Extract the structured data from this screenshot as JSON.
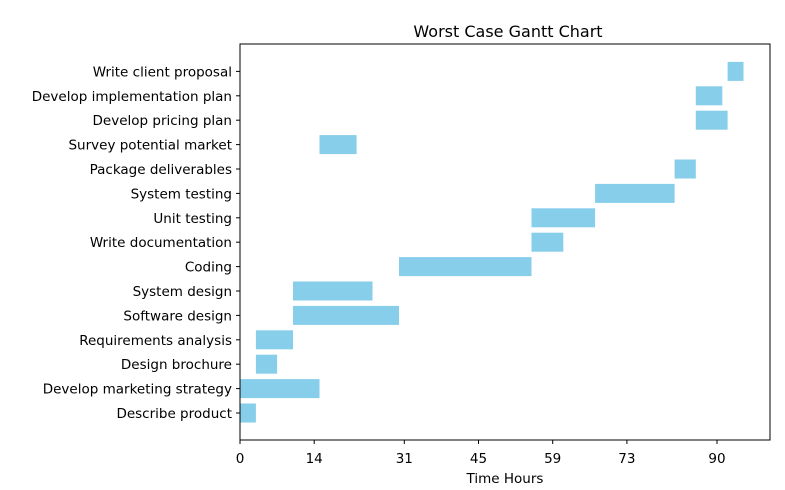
{
  "chart_data": {
    "type": "gantt",
    "title": "Worst Case Gantt Chart",
    "xlabel": "Time Hours",
    "ylabel": "",
    "xlim": [
      0,
      100
    ],
    "xticks": [
      0,
      14,
      31,
      45,
      59,
      73,
      90
    ],
    "grid": false,
    "legend": "none",
    "bar_color": "#87CEEB",
    "tasks": [
      {
        "name": "Describe product",
        "start": 0,
        "end": 3
      },
      {
        "name": "Develop marketing strategy",
        "start": 0,
        "end": 15
      },
      {
        "name": "Design brochure",
        "start": 3,
        "end": 7
      },
      {
        "name": "Requirements analysis",
        "start": 3,
        "end": 10
      },
      {
        "name": "Software design",
        "start": 10,
        "end": 30
      },
      {
        "name": "System design",
        "start": 10,
        "end": 25
      },
      {
        "name": "Coding",
        "start": 30,
        "end": 55
      },
      {
        "name": "Write documentation",
        "start": 55,
        "end": 61
      },
      {
        "name": "Unit testing",
        "start": 55,
        "end": 67
      },
      {
        "name": "System testing",
        "start": 67,
        "end": 82
      },
      {
        "name": "Package deliverables",
        "start": 82,
        "end": 86
      },
      {
        "name": "Survey potential market",
        "start": 15,
        "end": 22
      },
      {
        "name": "Develop pricing plan",
        "start": 86,
        "end": 92
      },
      {
        "name": "Develop implementation plan",
        "start": 86,
        "end": 91
      },
      {
        "name": "Write client proposal",
        "start": 92,
        "end": 95
      }
    ]
  }
}
